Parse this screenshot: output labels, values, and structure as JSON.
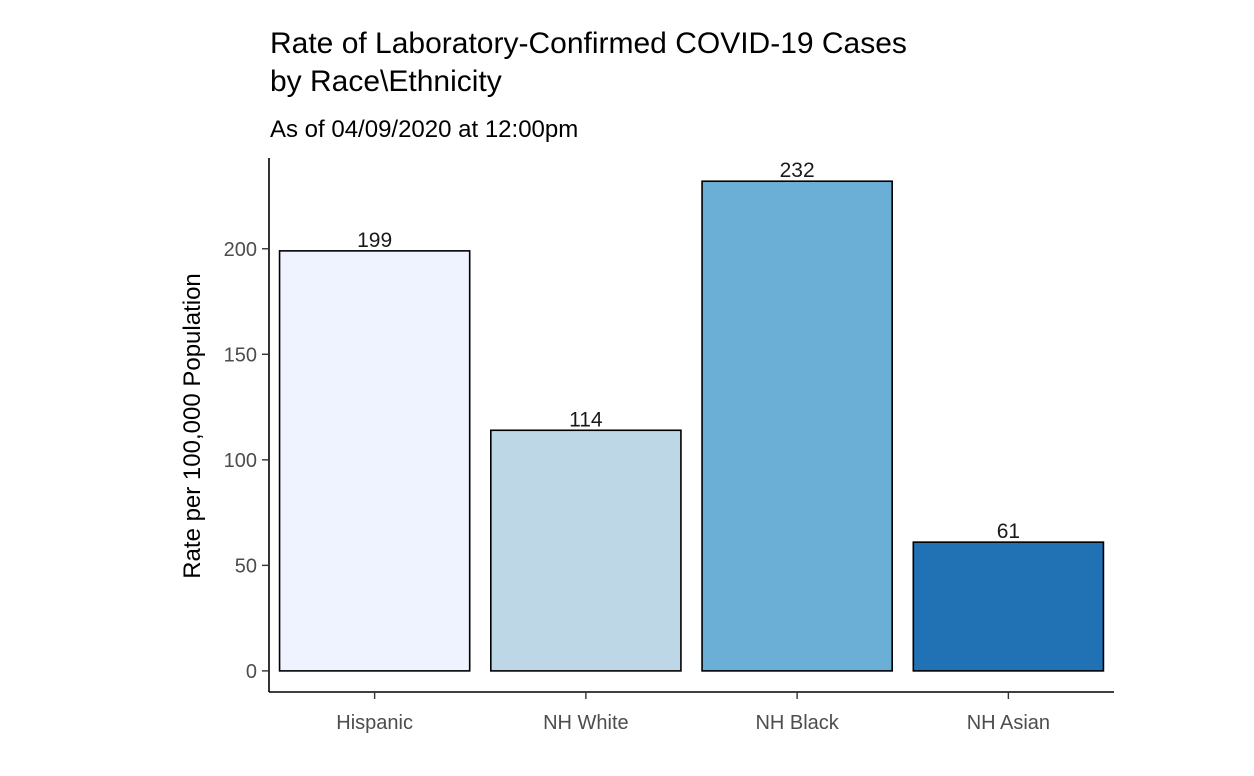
{
  "chart_data": {
    "type": "bar",
    "title_lines": [
      "Rate of Laboratory-Confirmed COVID-19 Cases",
      "by Race\\Ethnicity"
    ],
    "subtitle": "As of 04/09/2020 at 12:00pm",
    "xlabel": "",
    "ylabel": "Rate per 100,000 Population",
    "categories": [
      "Hispanic",
      "NH White",
      "NH Black",
      "NH Asian"
    ],
    "values": [
      199,
      114,
      232,
      61
    ],
    "data_labels": [
      "199",
      "114",
      "232",
      "61"
    ],
    "colors": [
      "#eff3ff",
      "#bdd7e7",
      "#6baed6",
      "#2171b5"
    ],
    "yticks": [
      0,
      50,
      100,
      150,
      200
    ],
    "ylim": [
      -10,
      243
    ],
    "grid": false,
    "legend": "none"
  }
}
